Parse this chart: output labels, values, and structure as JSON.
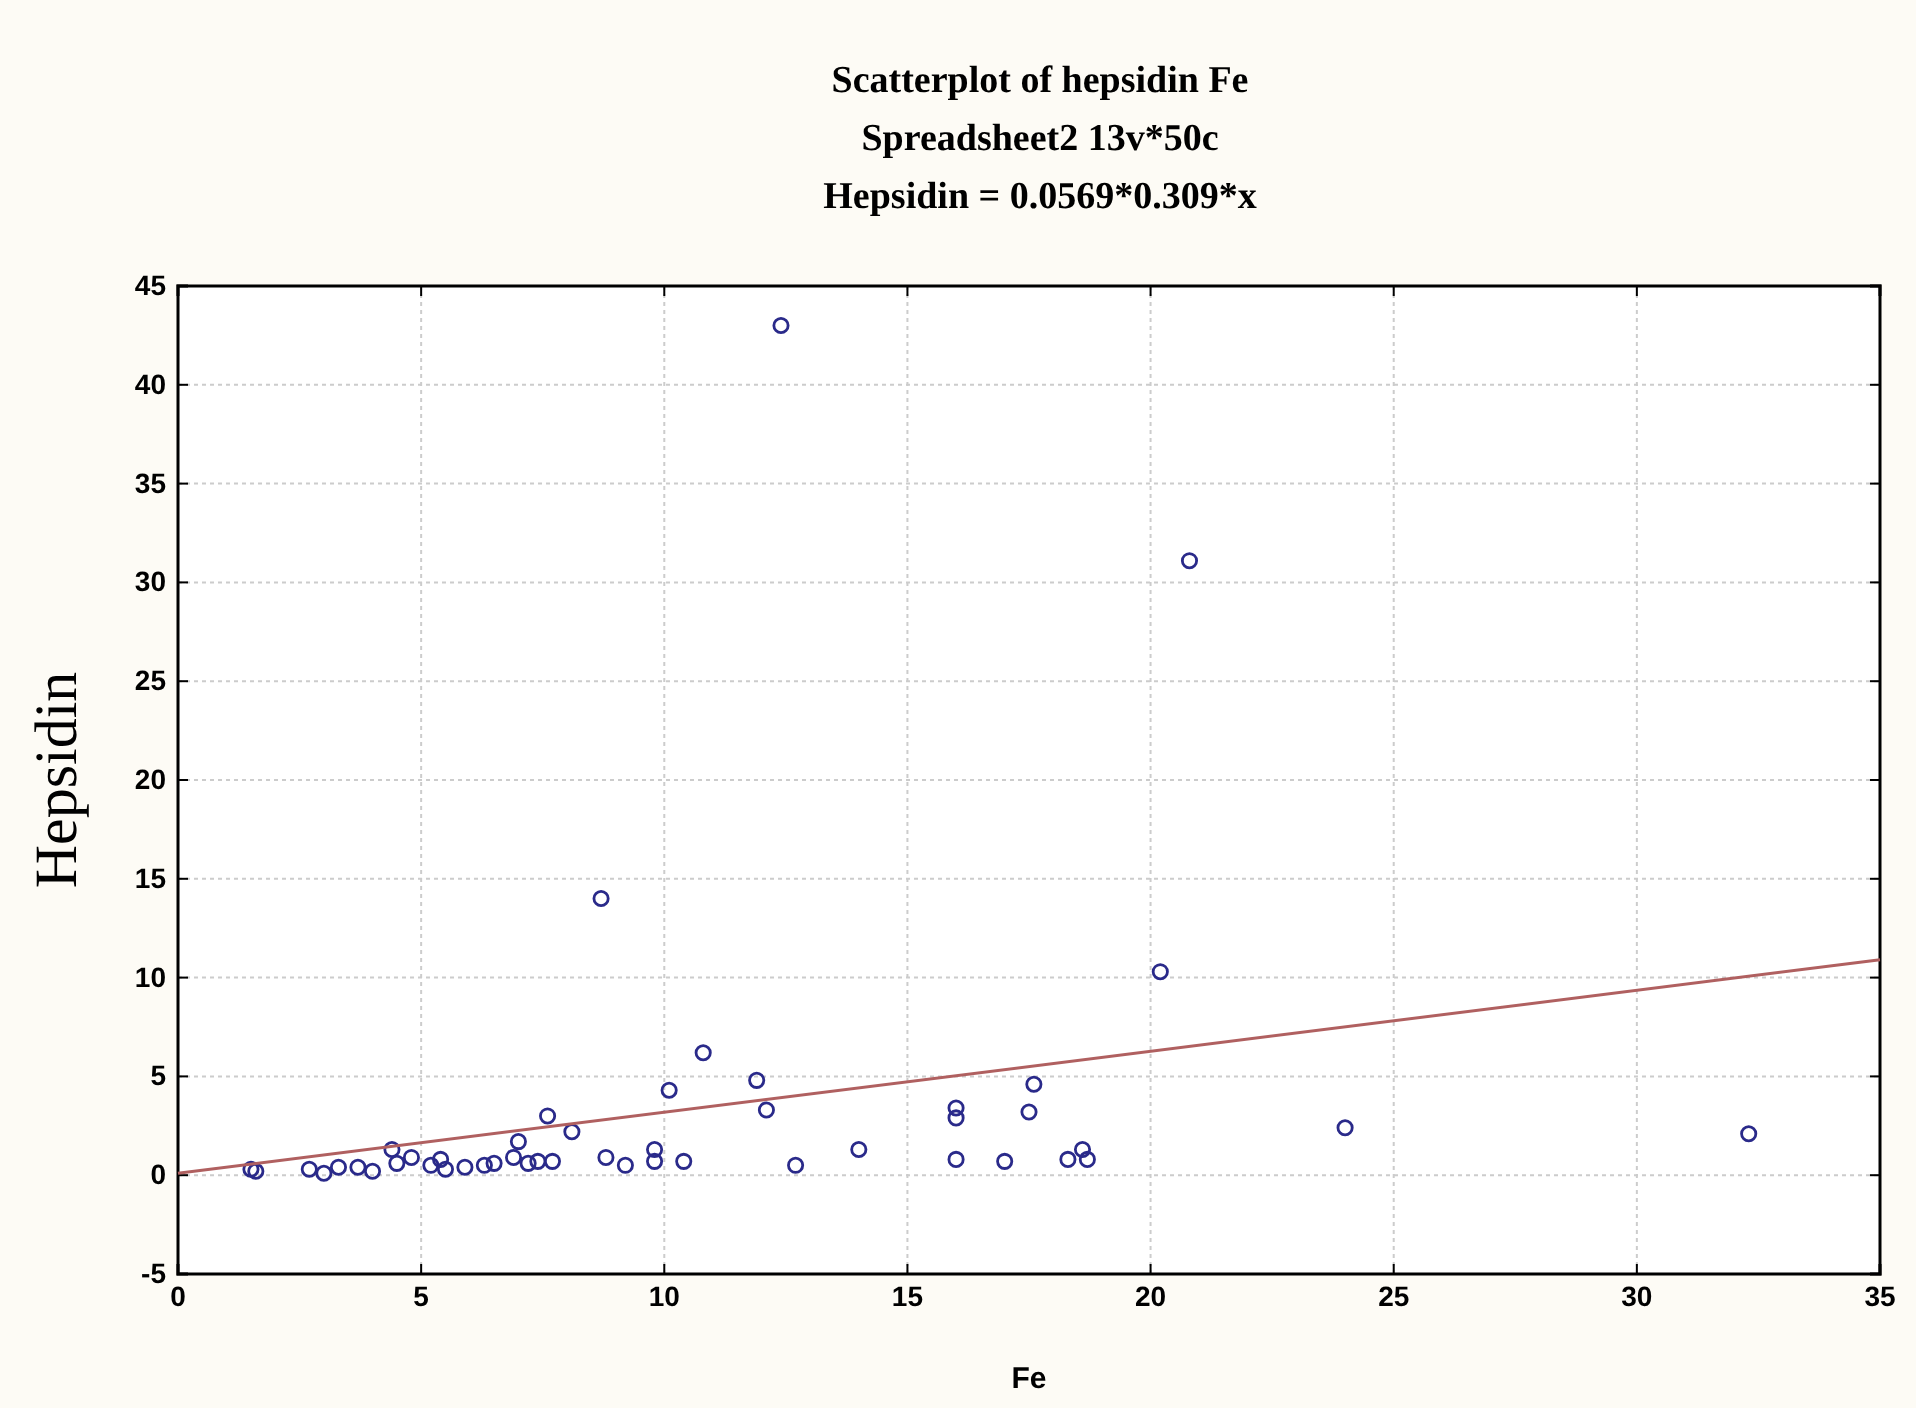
{
  "chart_data": {
    "type": "scatter",
    "title": "Scatterplot of hepsidin Fe\nSpreadsheet2 13v*50c\nHepsidin = 0.0569*0.309*x",
    "xlabel": "Fe",
    "ylabel": "Hepsidin",
    "xlim": [
      0,
      35
    ],
    "xticks": [
      0,
      5,
      10,
      15,
      20,
      25,
      30,
      35
    ],
    "ylim": [
      -5,
      45
    ],
    "yticks": [
      -5,
      0,
      5,
      10,
      15,
      20,
      25,
      30,
      35,
      40,
      45
    ],
    "grid": true,
    "series": [
      {
        "type": "scatter",
        "marker": "circle",
        "color": "#2a2a8a",
        "x": [
          1.5,
          1.6,
          2.7,
          3.0,
          3.3,
          3.7,
          4.0,
          4.4,
          4.5,
          4.8,
          5.2,
          5.4,
          5.5,
          5.9,
          6.3,
          6.5,
          6.9,
          7.0,
          7.2,
          7.4,
          7.6,
          7.7,
          8.1,
          8.7,
          8.8,
          9.2,
          9.8,
          9.8,
          10.1,
          10.4,
          10.8,
          11.9,
          12.1,
          12.4,
          12.7,
          14.0,
          16.0,
          16.0,
          16.0,
          17.0,
          17.5,
          17.6,
          18.3,
          18.6,
          18.7,
          20.2,
          20.8,
          24.0,
          32.3
        ],
        "values": [
          0.3,
          0.2,
          0.3,
          0.1,
          0.4,
          0.4,
          0.2,
          1.3,
          0.6,
          0.9,
          0.5,
          0.8,
          0.3,
          0.4,
          0.5,
          0.6,
          0.9,
          1.7,
          0.6,
          0.7,
          3.0,
          0.7,
          2.2,
          14.0,
          0.9,
          0.5,
          1.3,
          0.7,
          4.3,
          0.7,
          6.2,
          4.8,
          3.3,
          43.0,
          0.5,
          1.3,
          3.4,
          2.9,
          0.8,
          0.7,
          3.2,
          4.6,
          0.8,
          1.3,
          0.8,
          10.3,
          31.1,
          2.4,
          2.1
        ]
      },
      {
        "type": "line",
        "color": "#b06060",
        "line_style": "solid",
        "marker": "none",
        "x": [
          0,
          35
        ],
        "values": [
          0.1,
          10.9
        ]
      }
    ]
  }
}
